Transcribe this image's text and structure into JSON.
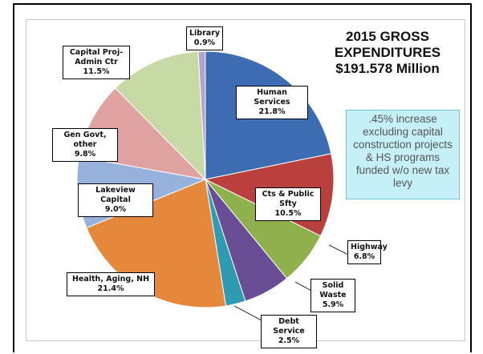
{
  "chart_data": {
    "type": "pie",
    "title": "2015 GROSS EXPENDITURES $191.578 Million",
    "annotation": ".45% increase excluding capital construction projects & HS programs funded w/o new tax levy",
    "categories": [
      "Human Services",
      "Cts & Public Sfty",
      "Highway",
      "Solid Waste",
      "Debt Service",
      "Health, Aging, NH",
      "Lakeview Capital",
      "Gen Govt, other",
      "Capital Proj-Admin Ctr",
      "Library"
    ],
    "values": [
      21.8,
      10.5,
      6.8,
      5.9,
      2.5,
      21.4,
      9.0,
      9.8,
      11.5,
      0.9
    ],
    "value_labels": [
      "21.8%",
      "10.5%",
      "6.8%",
      "5.9%",
      "2.5%",
      "21.4%",
      "9.0%",
      "9.8%",
      "11.5%",
      "0.9%"
    ],
    "colors": [
      "#3d6cb3",
      "#b9403d",
      "#8fb04c",
      "#6a4e95",
      "#2f9ab1",
      "#e6883b",
      "#95b1dc",
      "#e0a2a0",
      "#c7daa6",
      "#b4a3cb"
    ]
  }
}
